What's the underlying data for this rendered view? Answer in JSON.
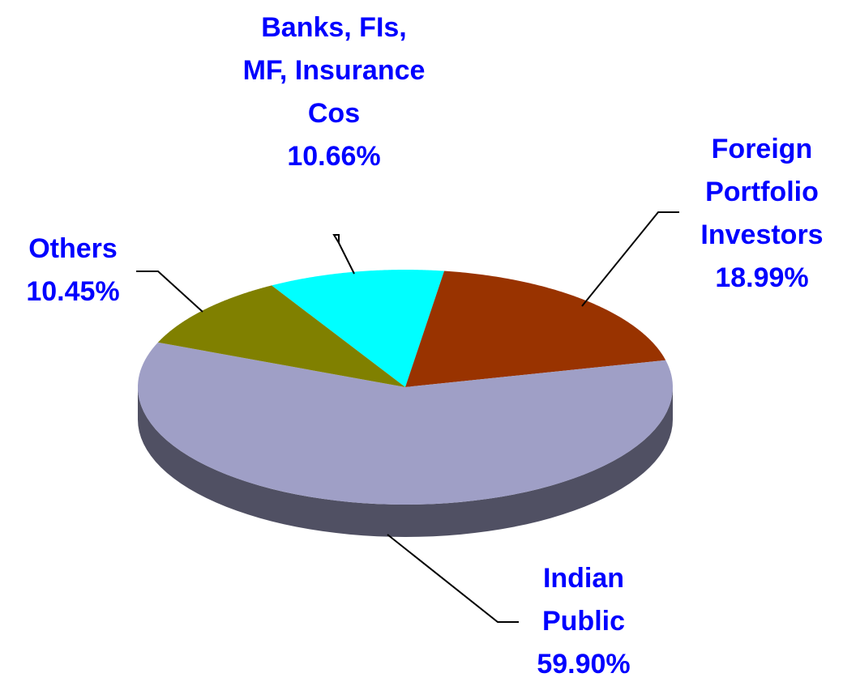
{
  "chart_data": {
    "type": "pie",
    "categories": [
      "Banks, FIs, MF, Insurance Cos",
      "Foreign Portfolio Investors",
      "Indian Public",
      "Others"
    ],
    "values": [
      10.66,
      18.99,
      59.9,
      10.45
    ],
    "value_labels": [
      "10.66%",
      "18.99%",
      "59.90%",
      "10.45%"
    ],
    "colors": [
      "#00ffff",
      "#993300",
      "#9f9fc6",
      "#808000"
    ]
  }
}
